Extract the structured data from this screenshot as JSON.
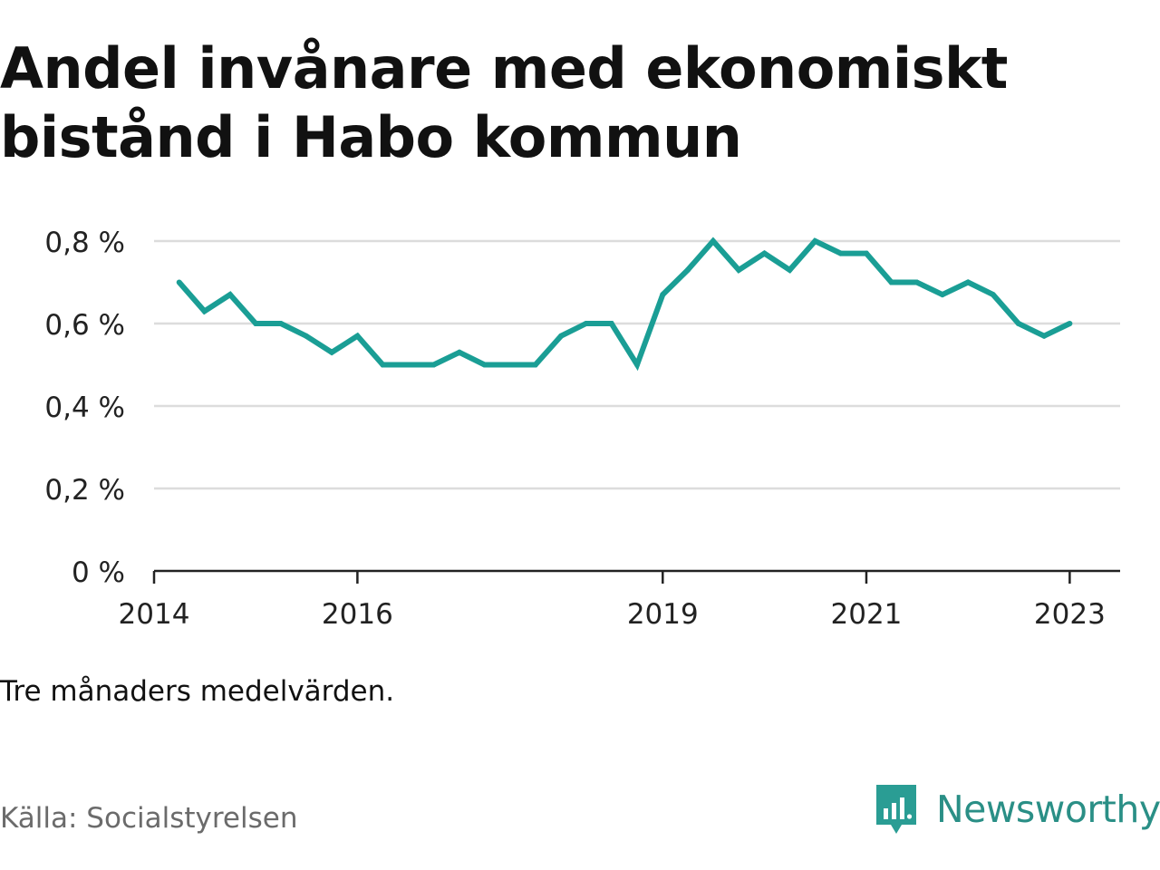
{
  "title_lines": [
    "Andel invånare med ekonomiskt",
    "bistånd i Habo kommun"
  ],
  "note": "Tre månaders medelvärden.",
  "source": "Källa: Socialstyrelsen",
  "brand": {
    "name": "Newsworthy",
    "icon": "newsworthy-logo-icon",
    "color": "#2a9d94"
  },
  "colors": {
    "line": "#1a9e95",
    "grid": "#dcdcdc",
    "axis": "#222222"
  },
  "chart_data": {
    "type": "line",
    "title": "Andel invånare med ekonomiskt bistånd i Habo kommun",
    "xlabel": "",
    "ylabel": "",
    "ylim": [
      0,
      0.8
    ],
    "xlim": [
      "2014-01-01",
      "2023-07-01"
    ],
    "yticks": [
      0,
      0.2,
      0.4,
      0.6,
      0.8
    ],
    "ytick_labels": [
      "0 %",
      "0,2 %",
      "0,4 %",
      "0,6 %",
      "0,8 %"
    ],
    "xticks": [
      "2014-01-01",
      "2016-01-01",
      "2019-01-01",
      "2021-01-01",
      "2023-01-01"
    ],
    "xtick_labels": [
      "2014",
      "2016",
      "2019",
      "2021",
      "2023"
    ],
    "grid": true,
    "series": [
      {
        "x": [
          "2014-04-01",
          "2014-07-01",
          "2014-10-01",
          "2015-01-01",
          "2015-04-01",
          "2015-07-01",
          "2015-10-01",
          "2016-01-01",
          "2016-04-01",
          "2016-07-01",
          "2016-10-01",
          "2017-01-01",
          "2017-04-01",
          "2017-07-01",
          "2017-10-01",
          "2018-01-01",
          "2018-04-01",
          "2018-07-01",
          "2018-10-01",
          "2019-01-01",
          "2019-04-01",
          "2019-07-01",
          "2019-10-01",
          "2020-01-01",
          "2020-04-01",
          "2020-07-01",
          "2020-10-01",
          "2021-01-01",
          "2021-04-01",
          "2021-07-01",
          "2021-10-01",
          "2022-01-01",
          "2022-04-01",
          "2022-07-01",
          "2022-10-01",
          "2023-01-01"
        ],
        "values": [
          0.7,
          0.63,
          0.67,
          0.6,
          0.6,
          0.57,
          0.53,
          0.57,
          0.5,
          0.5,
          0.5,
          0.53,
          0.5,
          0.5,
          0.5,
          0.57,
          0.6,
          0.6,
          0.5,
          0.67,
          0.73,
          0.8,
          0.73,
          0.77,
          0.73,
          0.8,
          0.77,
          0.77,
          0.7,
          0.7,
          0.67,
          0.7,
          0.67,
          0.6,
          0.57,
          0.6
        ]
      }
    ]
  }
}
